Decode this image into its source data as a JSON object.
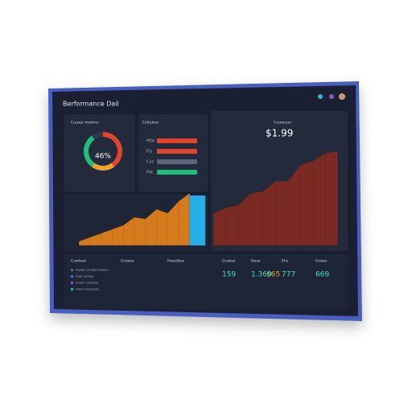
{
  "title": "Berformance Dail",
  "gauge": {
    "header": "Cuuxer Imetrns",
    "value": 46,
    "label": "46%"
  },
  "bars_panel": {
    "header": "Ecttelore",
    "rows": [
      {
        "label": "Ptte",
        "value": 50,
        "color": "#e0442c"
      },
      {
        "label": "Frs",
        "value": 50,
        "color": "#e0442c"
      },
      {
        "label": "Cvs",
        "value": 50,
        "color": "#5b6478"
      },
      {
        "label": "Pdt",
        "value": 50,
        "color": "#1fbf7a"
      }
    ],
    "xlim": [
      0,
      50
    ]
  },
  "area_left": {
    "values": [
      5,
      10,
      15,
      20,
      25,
      35,
      33,
      45,
      40,
      55,
      65
    ],
    "color": "#d67a1e",
    "bar": {
      "value": 62,
      "color": "#25aee8"
    },
    "ylim": [
      0,
      120
    ]
  },
  "area_right": {
    "header": "Crenereer",
    "value_text": "$1.99",
    "values": [
      40,
      47,
      50,
      65,
      67,
      80,
      80,
      100,
      105,
      115,
      117
    ],
    "color": "#7a2a22",
    "ylim": [
      0,
      120
    ]
  },
  "table": {
    "headers": [
      "Cuwlesd",
      "Grewse",
      "Hoactbos",
      "Crewse",
      "Desa",
      "Ehs",
      "Grewe"
    ],
    "legend": [
      "Fleeae Ceredes Fresine",
      "Fsetr Soreaa",
      "Cruetr Ccesrese",
      "Chon Greedueos"
    ],
    "values": [
      "159",
      "1.369",
      "777",
      "669"
    ],
    "value_alt": "$65"
  }
}
